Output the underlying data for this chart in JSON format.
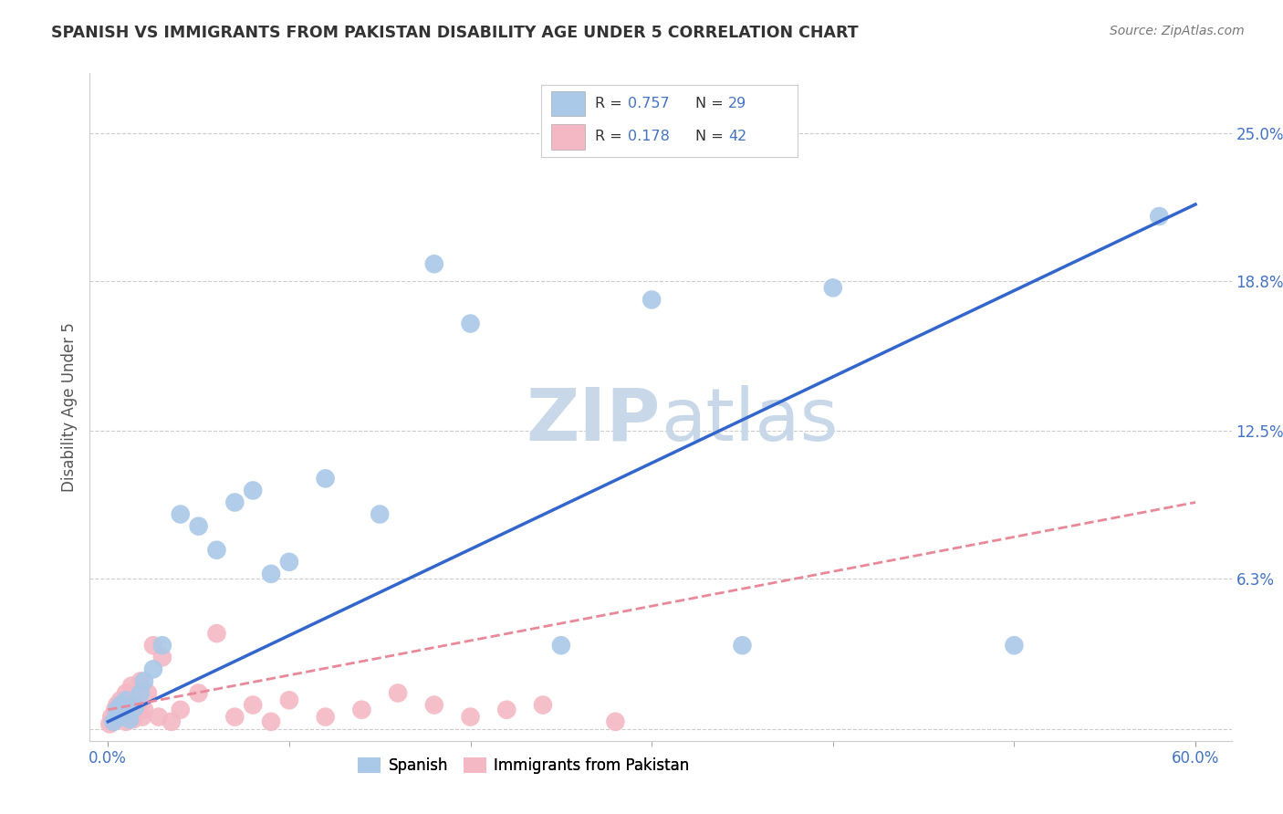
{
  "title": "SPANISH VS IMMIGRANTS FROM PAKISTAN DISABILITY AGE UNDER 5 CORRELATION CHART",
  "source": "Source: ZipAtlas.com",
  "ylabel": "Disability Age Under 5",
  "xlim": [
    -1.0,
    62.0
  ],
  "ylim": [
    -0.5,
    27.5
  ],
  "x_ticks": [
    0.0,
    60.0
  ],
  "x_tick_labels": [
    "0.0%",
    "60.0%"
  ],
  "y_ticks": [
    0.0,
    6.3,
    12.5,
    18.8,
    25.0
  ],
  "y_tick_labels": [
    "",
    "6.3%",
    "12.5%",
    "18.8%",
    "25.0%"
  ],
  "blue_color": "#aac8e8",
  "pink_color": "#f4b8c4",
  "trend_blue": "#3366cc",
  "trend_pink": "#e88898",
  "watermark_color": "#c8d8e8",
  "background_color": "#ffffff",
  "grid_color": "#cccccc",
  "tick_color": "#4472c4",
  "title_color": "#333333",
  "source_color": "#777777",
  "spanish_x": [
    0.3,
    0.5,
    0.6,
    0.7,
    0.8,
    1.0,
    1.2,
    1.5,
    1.8,
    2.0,
    2.5,
    3.0,
    4.0,
    5.0,
    6.0,
    7.0,
    8.0,
    9.0,
    10.0,
    12.0,
    15.0,
    18.0,
    20.0,
    25.0,
    30.0,
    35.0,
    40.0,
    50.0,
    58.0
  ],
  "spanish_y": [
    0.3,
    0.8,
    0.5,
    1.0,
    0.6,
    1.2,
    0.4,
    0.9,
    1.5,
    2.0,
    2.5,
    3.5,
    9.0,
    8.5,
    7.5,
    9.5,
    10.0,
    6.5,
    7.0,
    10.5,
    9.0,
    19.5,
    17.0,
    3.5,
    18.0,
    3.5,
    18.5,
    3.5,
    21.5
  ],
  "pakistan_x": [
    0.1,
    0.2,
    0.3,
    0.4,
    0.5,
    0.5,
    0.6,
    0.7,
    0.8,
    0.9,
    1.0,
    1.0,
    1.1,
    1.2,
    1.3,
    1.4,
    1.5,
    1.6,
    1.7,
    1.8,
    1.9,
    2.0,
    2.2,
    2.5,
    2.8,
    3.0,
    3.5,
    4.0,
    5.0,
    6.0,
    7.0,
    8.0,
    9.0,
    10.0,
    12.0,
    14.0,
    16.0,
    18.0,
    20.0,
    22.0,
    24.0,
    28.0
  ],
  "pakistan_y": [
    0.2,
    0.5,
    0.3,
    0.8,
    0.4,
    1.0,
    0.6,
    1.2,
    0.8,
    0.5,
    1.5,
    0.3,
    1.0,
    0.6,
    1.8,
    0.4,
    1.2,
    0.7,
    1.0,
    2.0,
    0.5,
    0.8,
    1.5,
    3.5,
    0.5,
    3.0,
    0.3,
    0.8,
    1.5,
    4.0,
    0.5,
    1.0,
    0.3,
    1.2,
    0.5,
    0.8,
    1.5,
    1.0,
    0.5,
    0.8,
    1.0,
    0.3
  ],
  "sp_trend_x0": 0.0,
  "sp_trend_y0": 0.3,
  "sp_trend_x1": 60.0,
  "sp_trend_y1": 22.0,
  "pk_trend_x0": 0.0,
  "pk_trend_y0": 0.8,
  "pk_trend_x1": 60.0,
  "pk_trend_y1": 9.5
}
